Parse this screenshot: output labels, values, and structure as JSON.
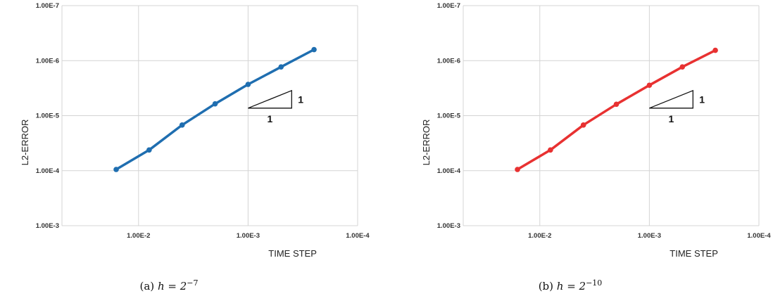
{
  "colors": {
    "panel_a": "#1f6eb0",
    "panel_b": "#e83131",
    "grid": "#d4d4d4"
  },
  "chart_data": [
    {
      "type": "line",
      "xlabel": "TIME STEP",
      "ylabel": "L2-ERROR",
      "x_scale": "log",
      "y_scale": "log",
      "x_reversed": true,
      "y_reversed": true,
      "xlim": [
        0.05,
        0.0001
      ],
      "ylim": [
        0.001,
        1e-07
      ],
      "x_ticks": [
        "1.00E-2",
        "1.00E-3",
        "1.00E-4"
      ],
      "y_ticks": [
        "1.00E-7",
        "1.00E-6",
        "1.00E-5",
        "1.00E-4",
        "1.00E-3"
      ],
      "grid": true,
      "series": [
        {
          "x": [
            0.016,
            0.008,
            0.004,
            0.002,
            0.001,
            0.0005,
            0.00025
          ],
          "y": [
            9.5e-05,
            4.2e-05,
            1.48e-05,
            6.1e-06,
            2.7e-06,
            1.3e-06,
            6.3e-07
          ]
        }
      ],
      "slope_triangle": {
        "horizontal": "1",
        "vertical": "1"
      },
      "caption": {
        "prefix": "(a)",
        "base": "h = 2",
        "exponent": "−7"
      }
    },
    {
      "type": "line",
      "xlabel": "TIME STEP",
      "ylabel": "L2-ERROR",
      "x_scale": "log",
      "y_scale": "log",
      "x_reversed": true,
      "y_reversed": true,
      "xlim": [
        0.05,
        0.0001
      ],
      "ylim": [
        0.001,
        1e-07
      ],
      "x_ticks": [
        "1.00E-2",
        "1.00E-3",
        "1.00E-4"
      ],
      "y_ticks": [
        "1.00E-7",
        "1.00E-6",
        "1.00E-5",
        "1.00E-4",
        "1.00E-3"
      ],
      "grid": true,
      "series": [
        {
          "x": [
            0.016,
            0.008,
            0.004,
            0.002,
            0.001,
            0.0005,
            0.00025
          ],
          "y": [
            9.5e-05,
            4.2e-05,
            1.48e-05,
            6.2e-06,
            2.8e-06,
            1.3e-06,
            6.5e-07
          ]
        }
      ],
      "slope_triangle": {
        "horizontal": "1",
        "vertical": "1"
      },
      "caption": {
        "prefix": "(b)",
        "base": "h = 2",
        "exponent": "−10"
      }
    }
  ]
}
